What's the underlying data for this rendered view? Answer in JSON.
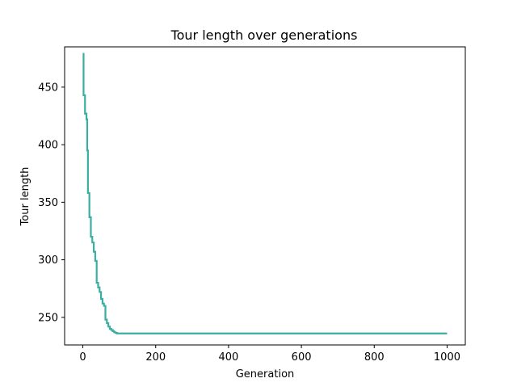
{
  "chart_data": {
    "type": "line",
    "title": "Tour length over generations",
    "xlabel": "Generation",
    "ylabel": "Tour length",
    "xlim": [
      -50,
      1050
    ],
    "ylim": [
      226,
      485
    ],
    "xticks": [
      0,
      200,
      400,
      600,
      800,
      1000
    ],
    "yticks": [
      250,
      300,
      350,
      400,
      450
    ],
    "grid": false,
    "legend": "none",
    "series": [
      {
        "color": "#3aaea2",
        "x": [
          0,
          2,
          2,
          6,
          6,
          10,
          10,
          12,
          12,
          14,
          14,
          18,
          18,
          22,
          22,
          26,
          26,
          30,
          30,
          34,
          34,
          38,
          38,
          42,
          42,
          46,
          46,
          50,
          50,
          54,
          54,
          58,
          58,
          62,
          62,
          66,
          66,
          70,
          70,
          74,
          74,
          78,
          78,
          82,
          82,
          86,
          86,
          90,
          90,
          94,
          94,
          1000
        ],
        "y": [
          479,
          479,
          443,
          443,
          427,
          427,
          422,
          422,
          395,
          395,
          358,
          358,
          337,
          337,
          320,
          320,
          315,
          315,
          307,
          307,
          299,
          299,
          280,
          280,
          276,
          276,
          272,
          272,
          266,
          266,
          262,
          262,
          260,
          260,
          248,
          248,
          245,
          245,
          242,
          242,
          240,
          240,
          239,
          239,
          238,
          238,
          237,
          237,
          236.5,
          236.5,
          236,
          236
        ]
      }
    ]
  }
}
